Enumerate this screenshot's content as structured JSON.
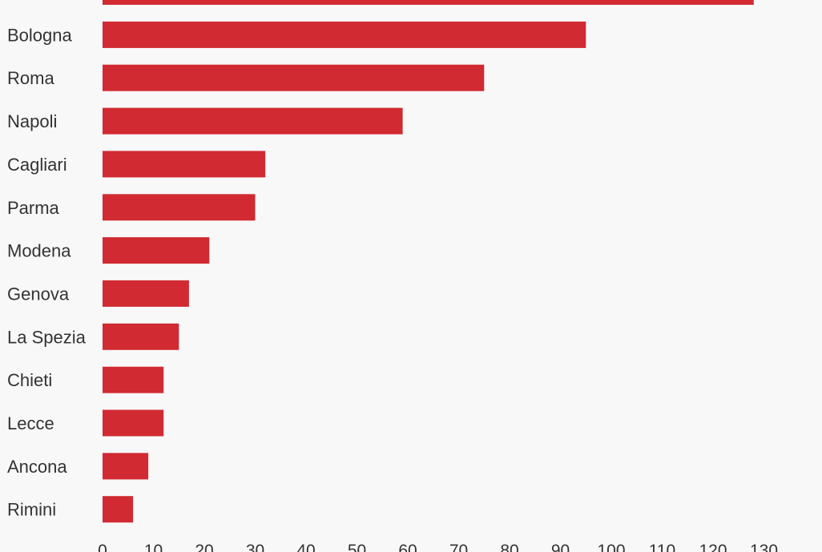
{
  "chart_data": {
    "type": "bar",
    "orientation": "horizontal",
    "categories": [
      "",
      "Bologna",
      "Roma",
      "Napoli",
      "Cagliari",
      "Parma",
      "Modena",
      "Genova",
      "La Spezia",
      "Chieti",
      "Lecce",
      "Ancona",
      "Rimini"
    ],
    "values": [
      128,
      95,
      75,
      59,
      32,
      30,
      21,
      17,
      15,
      12,
      12,
      9,
      6
    ],
    "xlim": [
      0,
      130
    ],
    "x_ticks": [
      0,
      10,
      20,
      30,
      40,
      50,
      60,
      70,
      80,
      90,
      100,
      110,
      120,
      130
    ],
    "grid": false,
    "bar_color": "#d12a32",
    "label_color": "#333333",
    "tick_color": "#333333",
    "background_color": "#f8f8f8"
  }
}
